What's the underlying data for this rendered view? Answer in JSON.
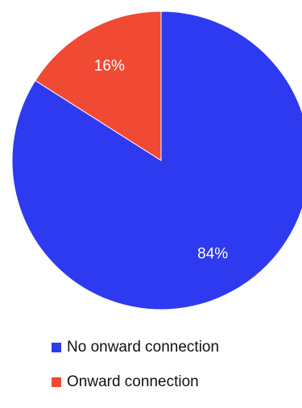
{
  "chart_data": {
    "type": "pie",
    "title": "",
    "slices": [
      {
        "label": "No onward connection",
        "value": 84,
        "value_label": "84%",
        "color": "#2e3af0"
      },
      {
        "label": "Onward connection",
        "value": 16,
        "value_label": "16%",
        "color": "#f04a34"
      }
    ],
    "start_angle": "12 o'clock",
    "direction": "clockwise",
    "legend_position": "bottom-left"
  }
}
